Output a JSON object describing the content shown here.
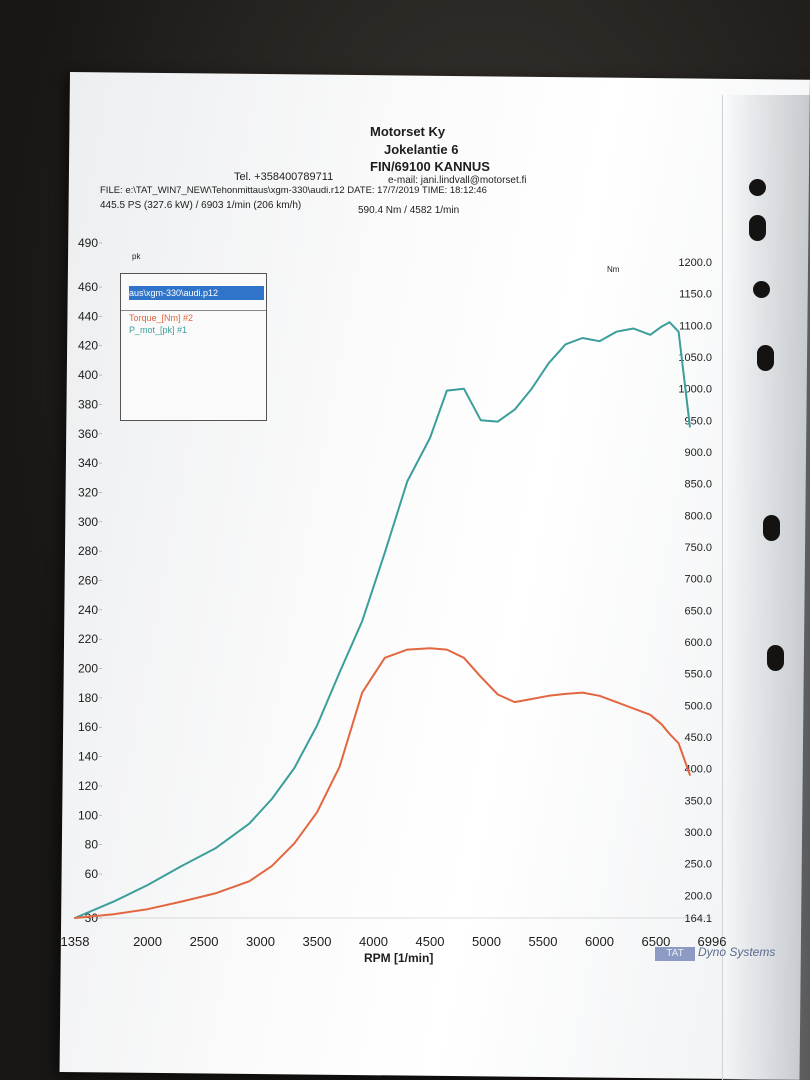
{
  "header": {
    "company": "Motorset Ky",
    "street": "Jokelantie 6",
    "city": "FIN/69100 KANNUS",
    "tel": "Tel. +358400789711",
    "email": "e-mail: jani.lindvall@motorset.fi",
    "file_line": "FILE: e:\\TAT_WIN7_NEW\\Tehonmittaus\\xgm-330\\audi.r12  DATE: 17/7/2019  TIME: 18:12:46",
    "summary_power": "445.5 PS  (327.6 kW) / 6903 1/min (206 km/h)",
    "summary_torque": "590.4 Nm / 4582 1/min"
  },
  "legend": {
    "path": "aus\\xgm-330\\audi.p12",
    "entries": [
      "Torque_[Nm] #2",
      "P_mot_[pk] #1"
    ]
  },
  "branding": {
    "logo": "TAT",
    "text": "Dyno Systems"
  },
  "colors": {
    "power": "#3c9e9a",
    "torque": "#e2663f",
    "legend_select": "#2f74c9"
  },
  "chart_data": {
    "type": "line",
    "xlabel": "RPM  [1/min]",
    "ylabel_left": "pk",
    "ylabel_right": "Nm",
    "x_ticks": [
      "1358",
      "2000",
      "2500",
      "3000",
      "3500",
      "4000",
      "4500",
      "5000",
      "5500",
      "6000",
      "6500",
      "6996"
    ],
    "y_left_ticks": [
      "30",
      "60",
      "80",
      "100",
      "120",
      "140",
      "160",
      "180",
      "200",
      "220",
      "240",
      "260",
      "280",
      "300",
      "320",
      "340",
      "360",
      "380",
      "400",
      "420",
      "440",
      "460",
      "490"
    ],
    "y_right_ticks": [
      "164.1",
      "200.0",
      "250.0",
      "300.0",
      "350.0",
      "400.0",
      "450.0",
      "500.0",
      "550.0",
      "600.0",
      "650.0",
      "700.0",
      "750.0",
      "800.0",
      "850.0",
      "900.0",
      "950.0",
      "1000.0",
      "1050.0",
      "1100.0",
      "1150.0",
      "1200.0"
    ],
    "xlim": [
      1358,
      6996
    ],
    "ylim_left": [
      30,
      490
    ],
    "ylim_right": [
      164.1,
      1200
    ],
    "grid": false,
    "legend_position": "top-left",
    "series": [
      {
        "name": "P_mot_[pk] #1",
        "axis": "right",
        "x": [
          1358,
          1700,
          2000,
          2300,
          2600,
          2900,
          3100,
          3300,
          3500,
          3700,
          3900,
          4100,
          4300,
          4500,
          4650,
          4800,
          4950,
          5100,
          5250,
          5400,
          5550,
          5700,
          5850,
          6000,
          6150,
          6300,
          6450,
          6550,
          6620,
          6700,
          6800
        ],
        "y": [
          164.1,
          190,
          216,
          246,
          274,
          313,
          352,
          401,
          468,
          552,
          633,
          741,
          854,
          922,
          997,
          1000,
          950,
          948,
          967,
          1000,
          1040,
          1070,
          1080,
          1075,
          1090,
          1095,
          1085,
          1098,
          1105,
          1090,
          940
        ]
      },
      {
        "name": "Torque_[Nm] #2",
        "axis": "right",
        "x": [
          1358,
          1700,
          2000,
          2300,
          2600,
          2900,
          3100,
          3300,
          3500,
          3700,
          3900,
          4100,
          4300,
          4500,
          4650,
          4800,
          4950,
          5100,
          5250,
          5400,
          5550,
          5700,
          5850,
          6000,
          6150,
          6300,
          6450,
          6550,
          6620,
          6700,
          6800
        ],
        "y": [
          164.1,
          170,
          178,
          190,
          203,
          222,
          246,
          282,
          331,
          403,
          520,
          575,
          588,
          590,
          588,
          575,
          545,
          517,
          505,
          510,
          515,
          518,
          520,
          515,
          505,
          495,
          485,
          470,
          455,
          440,
          390
        ]
      }
    ]
  }
}
